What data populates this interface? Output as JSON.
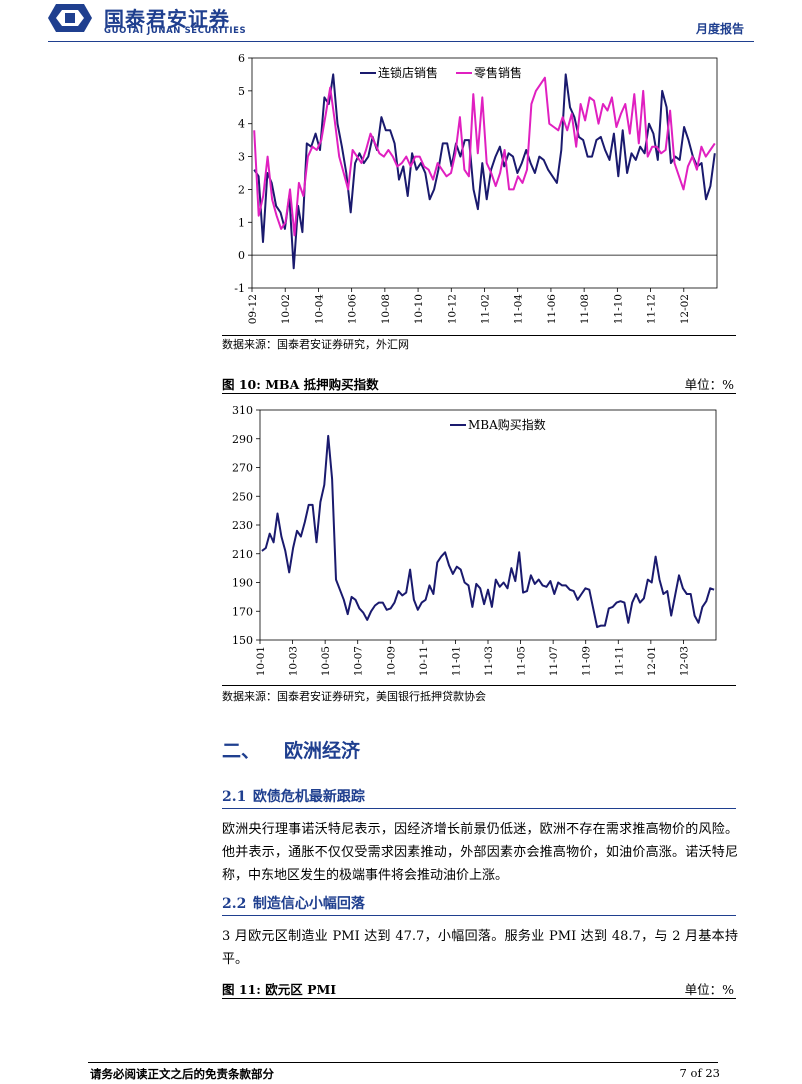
{
  "header": {
    "brand_cn": "国泰君安证券",
    "brand_en": "GUOTAI JUNAN SECURITIES",
    "report_type": "月度报告",
    "brand_color": "#1f3f8f"
  },
  "chart1": {
    "source": "数据来源：国泰君安证券研究，外汇网",
    "chart_data": {
      "type": "line",
      "title": "",
      "xlabel": "",
      "ylabel": "",
      "ylim": [
        -1,
        6
      ],
      "yticks": [
        -1,
        0,
        1,
        2,
        3,
        4,
        5,
        6
      ],
      "x_tick_labels": [
        "09-12",
        "10-02",
        "10-04",
        "10-06",
        "10-08",
        "10-10",
        "10-12",
        "11-02",
        "11-04",
        "11-06",
        "11-08",
        "11-10",
        "11-12",
        "12-02"
      ],
      "legend_position": "top",
      "series": [
        {
          "name": "连锁店销售",
          "color": "#1a1a6e",
          "values": [
            2.6,
            2.4,
            0.4,
            2.5,
            2.2,
            1.5,
            1.3,
            0.8,
            1.8,
            -0.4,
            1.5,
            0.7,
            3.4,
            3.3,
            3.7,
            3.2,
            4.8,
            4.6,
            5.5,
            4.0,
            3.3,
            2.5,
            1.3,
            2.8,
            3.1,
            2.8,
            3.0,
            3.6,
            3.2,
            4.2,
            3.8,
            3.8,
            3.4,
            2.3,
            2.7,
            1.8,
            3.1,
            2.6,
            2.8,
            2.5,
            1.7,
            2.0,
            2.6,
            3.4,
            3.4,
            2.7,
            3.4,
            3.0,
            3.5,
            3.5,
            2.0,
            1.4,
            2.8,
            1.7,
            2.6,
            3.0,
            3.3,
            2.7,
            3.1,
            3.0,
            2.5,
            2.8,
            3.2,
            2.8,
            2.5,
            3.0,
            2.9,
            2.6,
            2.4,
            2.2,
            3.2,
            5.5,
            4.5,
            4.2,
            3.6,
            3.5,
            3.0,
            3.0,
            3.5,
            3.6,
            3.2,
            2.9,
            3.7,
            2.4,
            3.8,
            2.5,
            3.1,
            2.9,
            3.3,
            3.1,
            4.0,
            3.7,
            2.9,
            5.0,
            4.5,
            2.8,
            3.0,
            2.9,
            3.9,
            3.5,
            3.0,
            2.7,
            2.8,
            1.7,
            2.1,
            3.1
          ]
        },
        {
          "name": "零售销售",
          "color": "#e020c0",
          "values": [
            3.8,
            1.2,
            1.8,
            3.0,
            1.7,
            1.2,
            0.8,
            1.0,
            2.0,
            0.6,
            2.2,
            1.8,
            3.0,
            3.3,
            3.2,
            3.5,
            4.3,
            5.1,
            4.1,
            3.0,
            2.5,
            2.0,
            3.2,
            3.0,
            2.8,
            3.2,
            3.7,
            3.4,
            3.1,
            3.0,
            3.2,
            3.0,
            2.7,
            2.8,
            3.0,
            2.7,
            3.0,
            3.0,
            2.7,
            2.6,
            2.3,
            2.8,
            2.6,
            2.4,
            2.5,
            3.1,
            4.2,
            2.6,
            2.4,
            4.9,
            3.1,
            4.8,
            2.8,
            2.5,
            2.1,
            2.5,
            3.2,
            2.0,
            2.0,
            2.4,
            2.2,
            2.6,
            4.6,
            5.0,
            5.2,
            5.4,
            4.0,
            3.9,
            3.8,
            4.2,
            3.8,
            4.3,
            3.3,
            4.6,
            4.1,
            4.8,
            4.7,
            4.0,
            4.6,
            4.4,
            4.8,
            3.9,
            4.3,
            4.6,
            3.7,
            4.9,
            3.4,
            5.0,
            3.0,
            3.3,
            3.3,
            3.1,
            3.2,
            4.4,
            2.8,
            2.4,
            2.0,
            2.7,
            3.0,
            2.6,
            3.3,
            3.0,
            3.2,
            3.4
          ]
        }
      ]
    }
  },
  "chart2": {
    "fig_title": "图 10: MBA 抵押购买指数",
    "unit": "单位：%",
    "source": "数据来源：国泰君安证券研究，美国银行抵押贷款协会",
    "chart_data": {
      "type": "line",
      "title": "",
      "xlabel": "",
      "ylabel": "",
      "ylim": [
        150,
        310
      ],
      "yticks": [
        150,
        170,
        190,
        210,
        230,
        250,
        270,
        290,
        310
      ],
      "x_tick_labels": [
        "10-01",
        "10-03",
        "10-05",
        "10-07",
        "10-09",
        "10-11",
        "11-01",
        "11-03",
        "11-05",
        "11-07",
        "11-09",
        "11-11",
        "12-01",
        "12-03"
      ],
      "legend_position": "top",
      "series": [
        {
          "name": "MBA购买指数",
          "color": "#1a1a6e",
          "values": [
            212,
            214,
            224,
            218,
            238,
            222,
            212,
            197,
            214,
            226,
            222,
            232,
            244,
            244,
            218,
            246,
            258,
            292,
            262,
            192,
            185,
            178,
            168,
            180,
            178,
            172,
            169,
            164,
            170,
            174,
            176,
            176,
            171,
            172,
            176,
            184,
            181,
            183,
            199,
            178,
            171,
            176,
            178,
            188,
            182,
            204,
            208,
            211,
            202,
            196,
            201,
            199,
            190,
            188,
            173,
            189,
            186,
            175,
            185,
            173,
            192,
            187,
            190,
            186,
            200,
            191,
            211,
            183,
            184,
            195,
            189,
            192,
            188,
            187,
            191,
            182,
            190,
            188,
            188,
            185,
            184,
            178,
            182,
            186,
            185,
            172,
            159,
            160,
            160,
            172,
            173,
            176,
            177,
            176,
            162,
            176,
            182,
            176,
            179,
            192,
            190,
            208,
            192,
            182,
            184,
            167,
            181,
            195,
            186,
            182,
            182,
            167,
            162,
            173,
            177,
            186,
            185
          ]
        }
      ]
    }
  },
  "section": {
    "number": "二、",
    "title": "欧洲经济"
  },
  "sub1": {
    "number": "2.1",
    "title": "欧债危机最新跟踪",
    "paragraph": "欧洲央行理事诺沃特尼表示，因经济增长前景仍低迷，欧洲不存在需求推高物价的风险。他并表示，通胀不仅仅受需求因素推动，外部因素亦会推高物价，如油价高涨。诺沃特尼称，中东地区发生的极端事件将会推动油价上涨。"
  },
  "sub2": {
    "number": "2.2",
    "title": "制造信心小幅回落",
    "paragraph": "3 月欧元区制造业 PMI 达到 47.7，小幅回落。服务业 PMI 达到 48.7，与 2 月基本持平。"
  },
  "figure11": {
    "fig_title": "图 11: 欧元区 PMI",
    "unit": "单位：%"
  },
  "footer": {
    "note": "请务必阅读正文之后的免责条款部分",
    "page": "7 of 23"
  }
}
